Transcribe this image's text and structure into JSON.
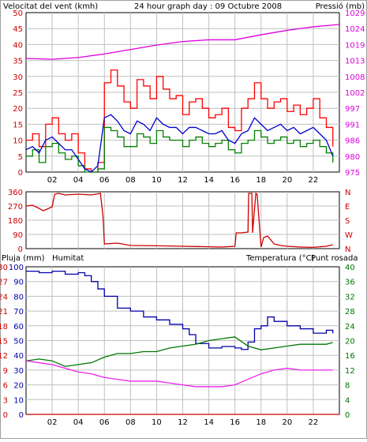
{
  "header": {
    "wind_label": "Velocitat del vent (kmh)",
    "title": "24 hour graph day : 09 Octubre 2008",
    "pressure_label": "Pressió (mb)"
  },
  "bottom_header": {
    "rain_label": "Pluja (mm)",
    "humidity_label": "Humitat",
    "temperature_label": "Temperatura (°C)",
    "dewpoint_label": "Punt rosada"
  },
  "x_ticks": [
    "02",
    "04",
    "06",
    "08",
    "10",
    "12",
    "14",
    "16",
    "18",
    "20",
    "22"
  ],
  "compass": [
    "N",
    "W",
    "S",
    "E",
    "N"
  ],
  "colors": {
    "wind_gust": "#ff0000",
    "wind_speed": "#008000",
    "wind_avg": "#0000cc",
    "pressure": "#dd00dd",
    "direction": "#cc0000",
    "humidity": "#0000aa",
    "temperature": "#007700",
    "dewpoint": "#ee22ee",
    "rain": "#cc0000",
    "grid": "#c0c0c0",
    "frame": "#000000"
  },
  "chart_data": [
    {
      "type": "line",
      "name": "wind-pressure",
      "title": "24 hour graph day : 09 Octubre 2008",
      "x_unit": "hour",
      "xlim": [
        0,
        24
      ],
      "y_left_label": "Velocitat del vent (kmh)",
      "y_left_ticks": [
        0,
        5,
        10,
        15,
        20,
        25,
        30,
        35,
        40,
        45,
        50
      ],
      "ylim_left": [
        0,
        50
      ],
      "y_right_label": "Pressió (mb)",
      "y_right_ticks": [
        975,
        980,
        986,
        991,
        997,
        1002,
        1008,
        1013,
        1019,
        1024,
        1029
      ],
      "ylim_right": [
        975,
        1029
      ],
      "grid": true,
      "series": [
        {
          "name": "",
          "color": "#ff0000",
          "axis": "left",
          "x": [
            0,
            0.5,
            1,
            1.5,
            2,
            2.5,
            3,
            3.5,
            4,
            4.5,
            5,
            5.5,
            6,
            6.5,
            7,
            7.5,
            8,
            8.5,
            9,
            9.5,
            10,
            10.5,
            11,
            11.5,
            12,
            12.5,
            13,
            13.5,
            14,
            14.5,
            15,
            15.5,
            16,
            16.5,
            17,
            17.5,
            18,
            18.5,
            19,
            19.5,
            20,
            20.5,
            21,
            21.5,
            22,
            22.5,
            23,
            23.5
          ],
          "y": [
            10,
            12,
            8,
            15,
            17,
            12,
            10,
            12,
            6,
            1,
            0,
            3,
            28,
            32,
            27,
            22,
            20,
            29,
            27,
            23,
            30,
            26,
            23,
            24,
            18,
            22,
            23,
            20,
            17,
            18,
            20,
            14,
            13,
            20,
            23,
            28,
            23,
            20,
            22,
            23,
            19,
            21,
            18,
            20,
            23,
            17,
            14,
            8
          ]
        },
        {
          "name": "",
          "color": "#008000",
          "axis": "left",
          "x": [
            0,
            0.5,
            1,
            1.5,
            2,
            2.5,
            3,
            3.5,
            4,
            4.5,
            5,
            5.5,
            6,
            6.5,
            7,
            7.5,
            8,
            8.5,
            9,
            9.5,
            10,
            10.5,
            11,
            11.5,
            12,
            12.5,
            13,
            13.5,
            14,
            14.5,
            15,
            15.5,
            16,
            16.5,
            17,
            17.5,
            18,
            18.5,
            19,
            19.5,
            20,
            20.5,
            21,
            21.5,
            22,
            22.5,
            23,
            23.5
          ],
          "y": [
            5,
            7,
            3,
            8,
            9,
            6,
            4,
            5,
            2,
            0,
            0,
            1,
            14,
            13,
            11,
            8,
            8,
            12,
            11,
            9,
            13,
            11,
            10,
            10,
            8,
            10,
            11,
            9,
            8,
            9,
            10,
            7,
            6,
            9,
            10,
            13,
            11,
            9,
            10,
            11,
            9,
            10,
            8,
            9,
            10,
            8,
            6,
            3
          ]
        },
        {
          "name": "",
          "color": "#0000cc",
          "axis": "left",
          "x": [
            0,
            0.5,
            1,
            1.5,
            2,
            2.5,
            3,
            3.5,
            4,
            4.5,
            5,
            5.5,
            6,
            6.5,
            7,
            7.5,
            8,
            8.5,
            9,
            9.5,
            10,
            10.5,
            11,
            11.5,
            12,
            12.5,
            13,
            13.5,
            14,
            14.5,
            15,
            15.5,
            16,
            16.5,
            17,
            17.5,
            18,
            18.5,
            19,
            19.5,
            20,
            20.5,
            21,
            21.5,
            22,
            22.5,
            23,
            23.5
          ],
          "y": [
            7,
            8,
            6,
            10,
            11,
            9,
            7,
            7,
            4,
            1,
            0,
            2,
            17,
            18,
            16,
            13,
            12,
            16,
            15,
            13,
            17,
            15,
            14,
            14,
            12,
            14,
            14,
            13,
            12,
            12,
            13,
            10,
            9,
            12,
            13,
            17,
            15,
            13,
            14,
            15,
            13,
            14,
            12,
            13,
            14,
            12,
            10,
            5
          ]
        },
        {
          "name": "",
          "color": "#dd00dd",
          "axis": "right",
          "x": [
            0,
            2,
            4,
            6,
            8,
            10,
            12,
            14,
            16,
            18,
            20,
            22,
            24
          ],
          "y": [
            1013.5,
            1013.2,
            1013.8,
            1015.0,
            1016.5,
            1018.0,
            1019.2,
            1019.8,
            1019.8,
            1021.5,
            1023.0,
            1024.2,
            1025.0
          ]
        }
      ]
    },
    {
      "type": "line",
      "name": "wind-direction",
      "x_unit": "hour",
      "xlim": [
        0,
        24
      ],
      "y_ticks": [
        0,
        90,
        180,
        270,
        360
      ],
      "ylim": [
        0,
        360
      ],
      "y_right_ticks": [
        "N",
        "W",
        "S",
        "E",
        "N"
      ],
      "grid": true,
      "series": [
        {
          "name": "",
          "color": "#cc0000",
          "x": [
            0,
            0.5,
            1,
            1.3,
            1.6,
            2,
            2.2,
            2.5,
            3,
            4,
            5,
            5.7,
            5.9,
            6,
            7,
            8,
            10,
            12,
            14,
            15,
            16,
            16.1,
            16.5,
            17,
            17.05,
            17.3,
            17.35,
            17.6,
            17.7,
            18,
            18.2,
            18.5,
            19,
            19.5,
            20,
            21,
            22,
            23,
            23.5
          ],
          "y": [
            270,
            275,
            255,
            240,
            250,
            265,
            345,
            350,
            340,
            345,
            340,
            350,
            200,
            30,
            35,
            20,
            18,
            15,
            12,
            10,
            15,
            100,
            100,
            105,
            350,
            350,
            100,
            350,
            345,
            10,
            70,
            80,
            30,
            20,
            15,
            10,
            8,
            15,
            25
          ]
        }
      ]
    },
    {
      "type": "line",
      "name": "rain-humidity-temperature",
      "x_unit": "hour",
      "xlim": [
        0,
        24
      ],
      "y_left_ticks_rain": [
        0,
        3,
        6,
        9,
        12,
        15,
        18,
        21,
        24,
        27,
        30
      ],
      "ylim_rain": [
        0,
        30
      ],
      "y_left_ticks_humidity": [
        0,
        10,
        20,
        30,
        40,
        50,
        60,
        70,
        80,
        90,
        100
      ],
      "ylim_humidity": [
        0,
        100
      ],
      "y_right_ticks": [
        0,
        4,
        8,
        12,
        16,
        20,
        24,
        28,
        32,
        36,
        40
      ],
      "ylim_temperature": [
        0,
        40
      ],
      "grid": true,
      "series": [
        {
          "name": "Humitat",
          "color": "#0000aa",
          "axis": "humidity",
          "x": [
            0,
            1,
            2,
            3,
            4,
            4.5,
            5,
            5.5,
            6,
            7,
            8,
            9,
            10,
            11,
            12,
            12.5,
            13,
            14,
            15,
            16,
            16.5,
            17,
            17.5,
            18,
            18.5,
            19,
            20,
            21,
            22,
            23,
            23.5
          ],
          "y": [
            97,
            96,
            97,
            95,
            96,
            94,
            90,
            85,
            80,
            72,
            70,
            66,
            64,
            61,
            58,
            54,
            48,
            45,
            46,
            45,
            44,
            49,
            58,
            60,
            66,
            63,
            60,
            58,
            55,
            57,
            55
          ]
        },
        {
          "name": "Temperatura (°C)",
          "color": "#007700",
          "axis": "temperature",
          "x": [
            0,
            1,
            2,
            3,
            4,
            5,
            6,
            7,
            8,
            9,
            10,
            11,
            12,
            13,
            14,
            15,
            16,
            17,
            18,
            19,
            20,
            21,
            22,
            23,
            23.5
          ],
          "y": [
            14.5,
            15,
            14.5,
            13,
            13.5,
            14,
            15.5,
            16.5,
            16.5,
            17,
            17,
            18,
            18.5,
            19,
            20,
            20.5,
            21,
            18.5,
            17.5,
            18,
            18.5,
            19,
            19,
            19,
            19.5
          ]
        },
        {
          "name": "Punt rosada",
          "color": "#ee22ee",
          "axis": "temperature",
          "x": [
            0,
            1,
            2,
            3,
            4,
            5,
            6,
            7,
            8,
            9,
            10,
            11,
            12,
            13,
            14,
            15,
            16,
            17,
            18,
            19,
            20,
            21,
            22,
            23,
            23.5
          ],
          "y": [
            14.5,
            14,
            13.5,
            12.5,
            11.5,
            11,
            10,
            9.5,
            9,
            9,
            9,
            8.5,
            8,
            7.5,
            7.5,
            7.5,
            8,
            9.5,
            11,
            12,
            12.5,
            12,
            12,
            12,
            12
          ]
        },
        {
          "name": "Pluja (mm)",
          "color": "#cc0000",
          "axis": "rain",
          "x": [
            0,
            24
          ],
          "y": [
            0,
            0
          ]
        }
      ]
    }
  ]
}
